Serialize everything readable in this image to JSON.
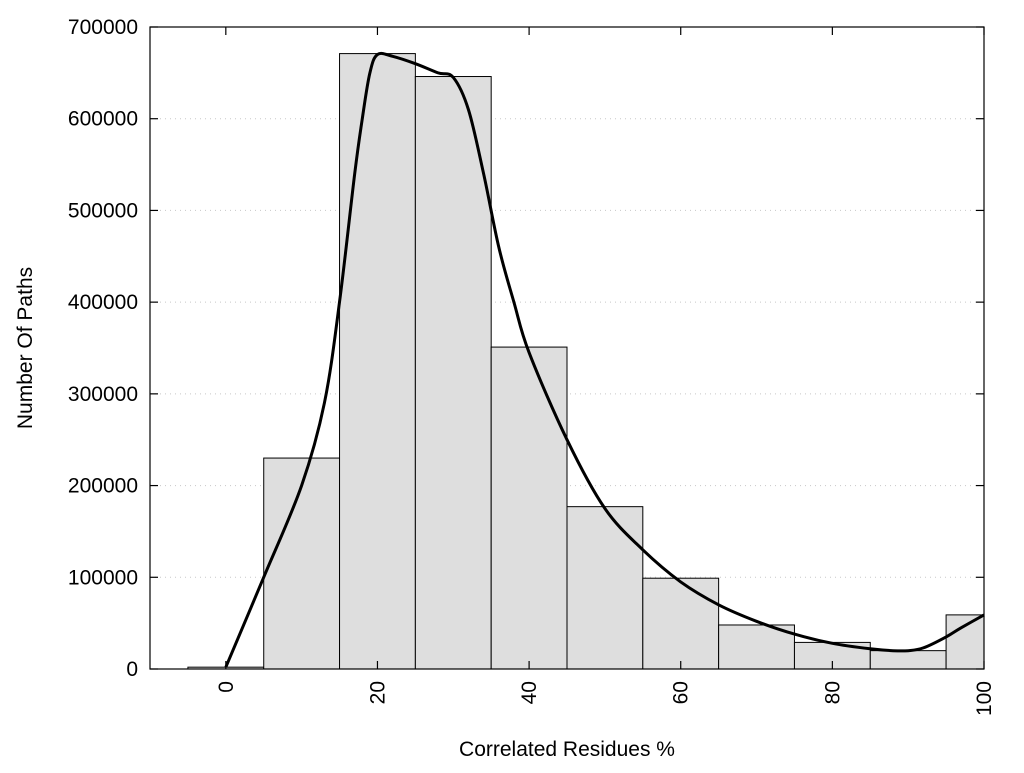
{
  "chart_data": {
    "type": "bar",
    "title": "",
    "xlabel": "Correlated Residues %",
    "ylabel": "Number Of Paths",
    "xlim": [
      -10,
      100
    ],
    "ylim": [
      0,
      700000
    ],
    "x_ticks": [
      0,
      20,
      40,
      60,
      80,
      100
    ],
    "y_ticks": [
      0,
      100000,
      200000,
      300000,
      400000,
      500000,
      600000,
      700000
    ],
    "grid": true,
    "legend": "none",
    "bars": {
      "centers": [
        0,
        10,
        20,
        30,
        40,
        50,
        60,
        70,
        80,
        90,
        100
      ],
      "bin_width": 10,
      "values": [
        2000,
        230000,
        671000,
        646000,
        351000,
        177000,
        99000,
        48000,
        29000,
        20000,
        59000
      ],
      "fill": "#dedede",
      "edge": "#000000"
    },
    "curve": {
      "x": [
        0,
        5,
        10,
        13,
        15,
        17,
        18,
        19,
        20,
        22,
        25,
        28,
        30,
        32,
        34,
        36,
        38,
        40,
        45,
        50,
        55,
        60,
        65,
        70,
        75,
        80,
        85,
        88,
        90,
        92,
        95,
        97,
        100
      ],
      "y": [
        2000,
        100000,
        200000,
        290000,
        400000,
        540000,
        600000,
        650000,
        670000,
        668000,
        660000,
        650000,
        645000,
        610000,
        540000,
        460000,
        400000,
        345000,
        250000,
        175000,
        130000,
        95000,
        70000,
        52000,
        38000,
        28000,
        22000,
        20000,
        20000,
        23000,
        35000,
        45000,
        59000
      ],
      "color": "#000000"
    }
  }
}
